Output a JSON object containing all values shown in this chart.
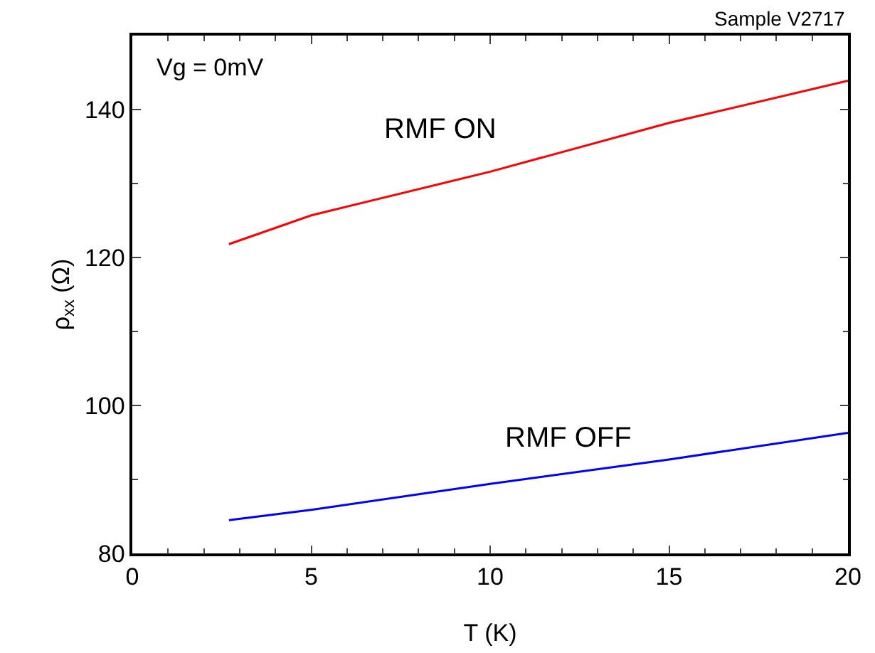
{
  "chart_data": {
    "type": "line",
    "xlabel": "T (K)",
    "ylabel": "ρ$_{xx}$ (Ω)",
    "annotations": [
      "Sample V2717",
      "Vg = 0mV"
    ],
    "x": [
      2.7,
      5,
      10,
      15,
      20
    ],
    "series": [
      {
        "name": "RMF ON",
        "color": "#ff0000",
        "values": [
          121.8,
          125.7,
          131.6,
          138.2,
          143.9
        ]
      },
      {
        "name": "RMF OFF",
        "color": "#0000ff",
        "values": [
          84.5,
          85.9,
          89.4,
          92.7,
          96.3
        ]
      }
    ],
    "xlim": [
      0,
      20
    ],
    "xticks": [
      0,
      5,
      10,
      15,
      20
    ],
    "ylim": [
      80,
      150
    ],
    "yticks": [
      80,
      100,
      120,
      140
    ],
    "grid": false,
    "legend": false,
    "marker": "none",
    "line_style": "solid"
  }
}
